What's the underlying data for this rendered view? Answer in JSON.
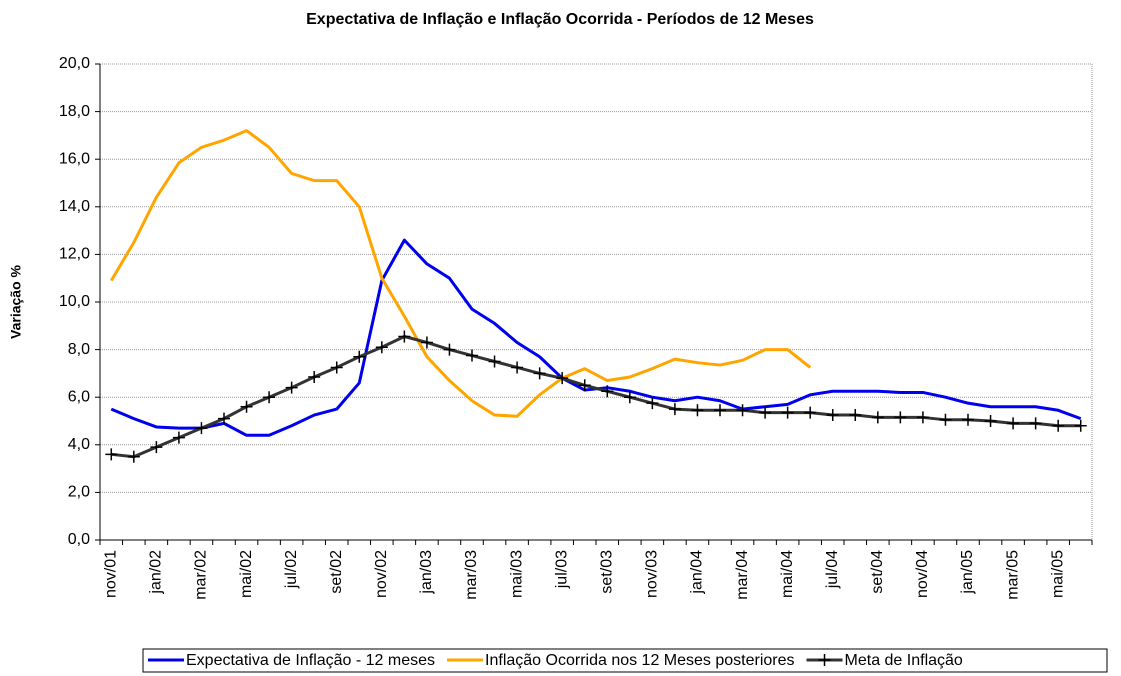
{
  "chart_data": {
    "type": "line",
    "title": "Expectativa de Inflação e Inflação Ocorrida - Períodos de 12 Meses",
    "y_label": "Variação %",
    "categories": [
      "nov/01",
      null,
      "jan/02",
      null,
      "mar/02",
      null,
      "mai/02",
      null,
      "jul/02",
      null,
      "set/02",
      null,
      "nov/02",
      null,
      "jan/03",
      null,
      "mar/03",
      null,
      "mai/03",
      null,
      "jul/03",
      null,
      "set/03",
      null,
      "nov/03",
      null,
      "jan/04",
      null,
      "mar/04",
      null,
      "mai/04",
      null,
      "jul/04",
      null,
      "set/04",
      null,
      "nov/04",
      null,
      "jan/05",
      null,
      "mar/05",
      null,
      "mai/05",
      null
    ],
    "series": [
      {
        "name": "Expectativa de Inflação - 12 meses",
        "color": "#0000ee",
        "values": [
          5.5,
          5.1,
          4.75,
          4.7,
          4.7,
          4.9,
          4.4,
          4.4,
          4.8,
          5.25,
          5.5,
          6.6,
          10.9,
          12.6,
          11.6,
          11.0,
          9.7,
          9.1,
          8.3,
          7.7,
          6.8,
          6.3,
          6.4,
          6.25,
          6.0,
          5.85,
          6.0,
          5.85,
          5.5,
          5.6,
          5.7,
          6.1,
          6.25,
          6.25,
          6.25,
          6.2,
          6.2,
          6.0,
          5.75,
          5.6,
          5.6,
          5.6,
          5.45,
          5.1
        ]
      },
      {
        "name": "Inflação Ocorrida nos 12 Meses posteriores",
        "color": "#ffa500",
        "values": [
          10.9,
          12.5,
          14.4,
          15.85,
          16.5,
          16.8,
          17.2,
          16.5,
          15.4,
          15.1,
          15.1,
          14.0,
          11.0,
          9.4,
          7.7,
          6.7,
          5.85,
          5.25,
          5.2,
          6.1,
          6.8,
          7.2,
          6.7,
          6.85,
          7.2,
          7.6,
          7.45,
          7.35,
          7.55,
          8.0,
          8.0,
          7.25,
          null,
          null,
          null,
          null,
          null,
          null,
          null,
          null,
          null,
          null,
          null,
          null
        ]
      },
      {
        "name": "Meta de Inflação",
        "color": "#333333",
        "marker": "plus",
        "values": [
          3.6,
          3.5,
          3.9,
          4.3,
          4.7,
          5.1,
          5.6,
          6.0,
          6.4,
          6.85,
          7.25,
          7.7,
          8.1,
          8.55,
          8.3,
          8.0,
          7.75,
          7.5,
          7.25,
          7.0,
          6.8,
          6.5,
          6.25,
          6.0,
          5.75,
          5.5,
          5.45,
          5.45,
          5.45,
          5.35,
          5.35,
          5.35,
          5.25,
          5.25,
          5.15,
          5.15,
          5.15,
          5.05,
          5.05,
          5.0,
          4.9,
          4.9,
          4.8,
          4.8
        ]
      }
    ],
    "ylim": [
      0,
      20
    ],
    "yticks": [
      {
        "value": 0,
        "label": "0,0"
      },
      {
        "value": 2,
        "label": "2,0"
      },
      {
        "value": 4,
        "label": "4,0"
      },
      {
        "value": 6,
        "label": "6,0"
      },
      {
        "value": 8,
        "label": "8,0"
      },
      {
        "value": 10,
        "label": "10,0"
      },
      {
        "value": 12,
        "label": "12,0"
      },
      {
        "value": 14,
        "label": "14,0"
      },
      {
        "value": 16,
        "label": "16,0"
      },
      {
        "value": 18,
        "label": "18,0"
      },
      {
        "value": 20,
        "label": "20,0"
      }
    ],
    "grid": true,
    "legend": "bottom"
  }
}
